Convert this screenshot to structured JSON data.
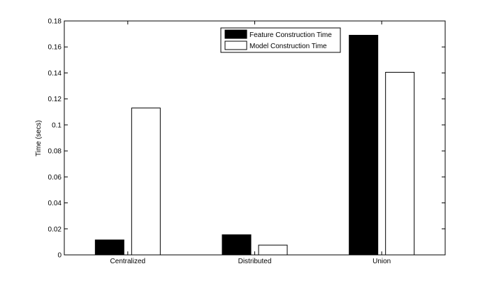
{
  "chart_data": {
    "type": "bar",
    "title": "",
    "xlabel": "",
    "ylabel": "Time (secs)",
    "categories": [
      "Centralized",
      "Distributed",
      "Union"
    ],
    "series": [
      {
        "name": "Feature Construction Time",
        "color": "#000000",
        "values": [
          0.0115,
          0.0155,
          0.169
        ]
      },
      {
        "name": "Model Construction Time",
        "color": "#ffffff",
        "values": [
          0.113,
          0.0075,
          0.1405
        ]
      }
    ],
    "ylim": [
      0,
      0.18
    ],
    "yticks": [
      0,
      0.02,
      0.04,
      0.06,
      0.08,
      0.1,
      0.12,
      0.14,
      0.16,
      0.18
    ],
    "ytick_labels": [
      "0",
      "0.02",
      "0.04",
      "0.06",
      "0.08",
      "0.1",
      "0.12",
      "0.14",
      "0.16",
      "0.18"
    ],
    "legend_position": "top-right",
    "grid": false
  }
}
